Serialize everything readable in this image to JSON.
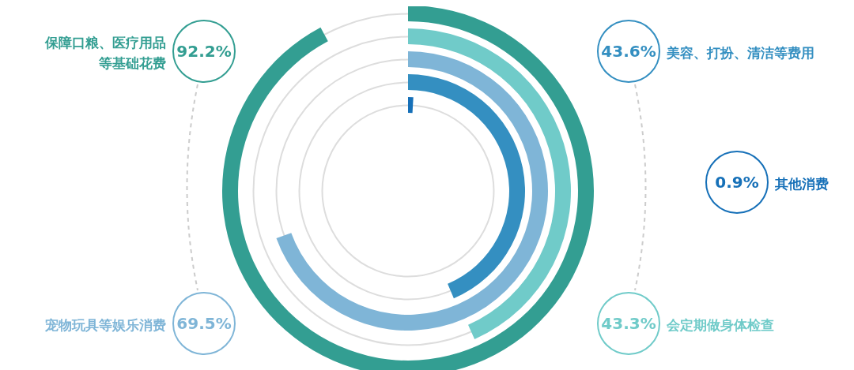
{
  "chart_data": {
    "type": "other",
    "categories": [
      "其他消费",
      "美容、打扮、清洁等费用",
      "宠物玩具等娱乐消费",
      "会定期做身体检查",
      "保障口粮、医疗用品等基础花费"
    ],
    "values": [
      0.9,
      43.6,
      69.5,
      43.3,
      92.2
    ],
    "value_labels": [
      "0.9%",
      "43.6%",
      "69.5%",
      "43.3%",
      "92.2%"
    ],
    "colors": [
      "#1670b8",
      "#348fc1",
      "#7fb5d7",
      "#70cbc9",
      "#339e92"
    ]
  }
}
